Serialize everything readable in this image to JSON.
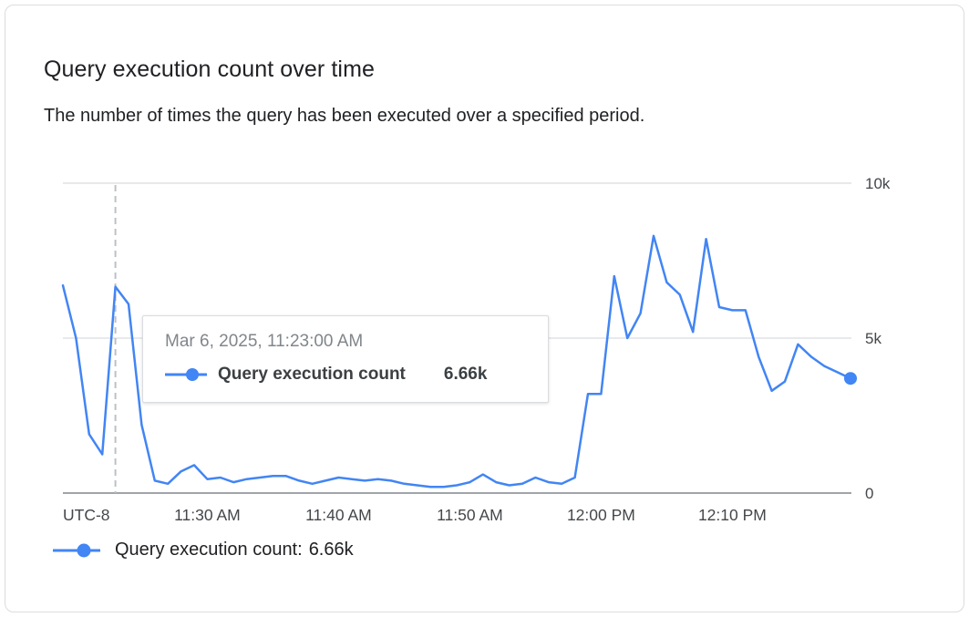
{
  "card": {
    "title": "Query execution count over time",
    "subtitle": "The number of times the query has been executed over a specified period."
  },
  "tooltip": {
    "timestamp": "Mar 6, 2025, 11:23:00 AM",
    "series_label": "Query execution count",
    "value": "6.66k"
  },
  "legend": {
    "label": "Query execution count:",
    "value": "6.66k"
  },
  "colors": {
    "series": "#4285F4",
    "grid": "#dadce0",
    "axis": "#80868b",
    "hover_line": "#bdc1c6",
    "tick_text": "#44474b",
    "tooltip_date_text": "#80868b"
  },
  "chart_data": {
    "type": "line",
    "title": "Query execution count over time",
    "xlabel": "",
    "ylabel": "",
    "ylim": [
      0,
      10000
    ],
    "grid": "horizontal",
    "legend_position": "bottom",
    "utc_label": "UTC-8",
    "hover_time": "11:23 AM",
    "y_ticks": [
      {
        "value": 0,
        "label": "0"
      },
      {
        "value": 5000,
        "label": "5k"
      },
      {
        "value": 10000,
        "label": "10k"
      }
    ],
    "x_ticks": [
      {
        "time": "11:30 AM",
        "label": "11:30 AM"
      },
      {
        "time": "11:40 AM",
        "label": "11:40 AM"
      },
      {
        "time": "11:50 AM",
        "label": "11:50 AM"
      },
      {
        "time": "12:00 PM",
        "label": "12:00 PM"
      },
      {
        "time": "12:10 PM",
        "label": "12:10 PM"
      }
    ],
    "series": [
      {
        "name": "Query execution count",
        "color": "#4285F4",
        "x": [
          "11:19 AM",
          "11:20 AM",
          "11:21 AM",
          "11:22 AM",
          "11:23 AM",
          "11:24 AM",
          "11:25 AM",
          "11:26 AM",
          "11:27 AM",
          "11:28 AM",
          "11:29 AM",
          "11:30 AM",
          "11:31 AM",
          "11:32 AM",
          "11:33 AM",
          "11:34 AM",
          "11:35 AM",
          "11:36 AM",
          "11:37 AM",
          "11:38 AM",
          "11:39 AM",
          "11:40 AM",
          "11:41 AM",
          "11:42 AM",
          "11:43 AM",
          "11:44 AM",
          "11:45 AM",
          "11:46 AM",
          "11:47 AM",
          "11:48 AM",
          "11:49 AM",
          "11:50 AM",
          "11:51 AM",
          "11:52 AM",
          "11:53 AM",
          "11:54 AM",
          "11:55 AM",
          "11:56 AM",
          "11:57 AM",
          "11:58 AM",
          "11:59 AM",
          "12:00 PM",
          "12:01 PM",
          "12:02 PM",
          "12:03 PM",
          "12:04 PM",
          "12:05 PM",
          "12:06 PM",
          "12:07 PM",
          "12:08 PM",
          "12:09 PM",
          "12:10 PM",
          "12:11 PM",
          "12:12 PM",
          "12:13 PM",
          "12:14 PM",
          "12:15 PM",
          "12:16 PM",
          "12:17 PM",
          "12:18 PM",
          "12:19 PM"
        ],
        "values": [
          6700,
          5000,
          1900,
          1250,
          6660,
          6100,
          2200,
          400,
          300,
          700,
          900,
          450,
          500,
          350,
          450,
          500,
          550,
          550,
          400,
          300,
          400,
          500,
          450,
          400,
          450,
          400,
          300,
          250,
          200,
          200,
          250,
          350,
          600,
          350,
          250,
          300,
          500,
          350,
          300,
          500,
          3200,
          3200,
          7000,
          5000,
          5800,
          8300,
          6800,
          6400,
          5200,
          8200,
          6000,
          5900,
          5900,
          4400,
          3300,
          3600,
          4800,
          4400,
          4100,
          3900,
          3700
        ]
      }
    ]
  }
}
